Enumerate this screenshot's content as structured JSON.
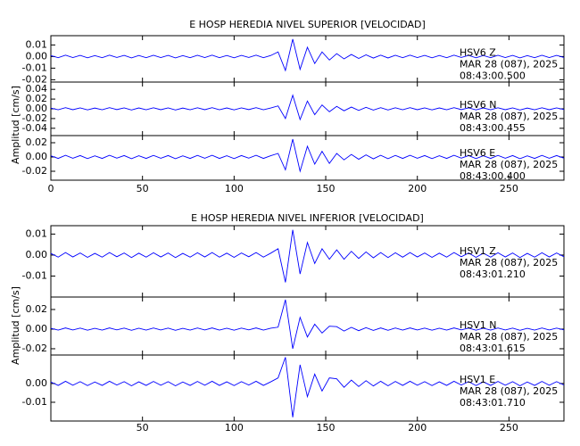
{
  "chart_data": [
    {
      "type": "line",
      "title": "E HOSP HEREDIA NIVEL SUPERIOR [VELOCIDAD]",
      "y_label": "Amplitud [cm/s]",
      "xlim": [
        0,
        280
      ],
      "xticks": [
        0,
        50,
        100,
        150,
        200,
        250
      ],
      "x": [
        0,
        4,
        8,
        12,
        16,
        20,
        24,
        28,
        32,
        36,
        40,
        44,
        48,
        52,
        56,
        60,
        64,
        68,
        72,
        76,
        80,
        84,
        88,
        92,
        96,
        100,
        104,
        108,
        112,
        116,
        120,
        124,
        128,
        132,
        136,
        140,
        144,
        148,
        152,
        156,
        160,
        164,
        168,
        172,
        176,
        180,
        184,
        188,
        192,
        196,
        200,
        204,
        208,
        212,
        216,
        220,
        224,
        228,
        232,
        236,
        240,
        244,
        248,
        252,
        256,
        260,
        264,
        268,
        272,
        276,
        280
      ],
      "panels": [
        {
          "name": "HSV6   Z",
          "date": "MAR 28 (087), 2025",
          "time": "08:43:00.500",
          "color": "#0000ff",
          "ylim": [
            -0.022,
            0.018
          ],
          "yticks": [
            0.01,
            {
              "value": 0,
              "label": "0.00"
            },
            -0.01,
            -0.02
          ],
          "values": [
            0.0008,
            -0.001,
            0.0012,
            -0.0009,
            0.001,
            -0.0011,
            0.0008,
            -0.001,
            0.0012,
            -0.0008,
            0.001,
            -0.0012,
            0.0009,
            -0.001,
            0.0011,
            -0.0009,
            0.001,
            -0.0012,
            0.0008,
            -0.001,
            0.0011,
            -0.0009,
            0.0012,
            -0.001,
            0.0009,
            -0.0011,
            0.001,
            -0.0008,
            0.0012,
            -0.001,
            0.0009,
            0.004,
            -0.012,
            0.015,
            -0.011,
            0.008,
            -0.006,
            0.004,
            -0.003,
            0.0025,
            -0.002,
            0.0018,
            -0.0016,
            0.0015,
            -0.0013,
            0.0012,
            -0.0012,
            0.0011,
            -0.001,
            0.0012,
            -0.0009,
            0.001,
            -0.0011,
            0.0009,
            -0.001,
            0.0012,
            -0.0008,
            0.001,
            -0.0011,
            0.0009,
            -0.001,
            0.0011,
            -0.0009,
            0.001,
            -0.0012,
            0.0008,
            -0.001,
            0.0011,
            -0.0009,
            0.001,
            -0.0008
          ]
        },
        {
          "name": "HSV6   N",
          "date": "MAR 28 (087), 2025",
          "time": "08:43:00.455",
          "color": "#0000ff",
          "ylim": [
            -0.055,
            0.055
          ],
          "yticks": [
            0.04,
            0.02,
            {
              "value": 0,
              "label": "0.00"
            },
            -0.02,
            -0.04
          ],
          "values": [
            0.0016,
            -0.002,
            0.0024,
            -0.0018,
            0.002,
            -0.0022,
            0.0016,
            -0.002,
            0.0024,
            -0.0016,
            0.002,
            -0.0024,
            0.0018,
            -0.002,
            0.0022,
            -0.0018,
            0.002,
            -0.0024,
            0.0016,
            -0.002,
            0.0022,
            -0.0018,
            0.0024,
            -0.002,
            0.0018,
            -0.0022,
            0.002,
            -0.0016,
            0.0024,
            -0.002,
            0.0018,
            0.006,
            -0.02,
            0.028,
            -0.022,
            0.016,
            -0.012,
            0.008,
            -0.006,
            0.005,
            -0.004,
            0.0036,
            -0.0032,
            0.003,
            -0.0026,
            0.0024,
            -0.0024,
            0.0022,
            -0.002,
            0.0024,
            -0.0018,
            0.002,
            -0.0022,
            0.0018,
            -0.002,
            0.0024,
            -0.0016,
            0.002,
            -0.0022,
            0.0018,
            -0.002,
            0.0022,
            -0.0018,
            0.002,
            -0.0024,
            0.0016,
            -0.002,
            0.0022,
            -0.0018,
            0.002,
            -0.0016
          ]
        },
        {
          "name": "HSV6   E",
          "date": "MAR 28 (087), 2025",
          "time": "08:43:00.400",
          "color": "#0000ff",
          "ylim": [
            -0.0325,
            0.03
          ],
          "yticks": [
            0.02,
            {
              "value": 0,
              "label": "0.00"
            },
            -0.02
          ],
          "values": [
            0.0016,
            -0.002,
            0.0024,
            -0.0018,
            0.002,
            -0.0022,
            0.0016,
            -0.002,
            0.0024,
            -0.0016,
            0.002,
            -0.0024,
            0.0018,
            -0.002,
            0.0022,
            -0.0018,
            0.002,
            -0.0024,
            0.0016,
            -0.002,
            0.0022,
            -0.0018,
            0.0024,
            -0.002,
            0.0018,
            -0.0022,
            0.002,
            -0.0016,
            0.0024,
            -0.002,
            0.0018,
            0.005,
            -0.018,
            0.025,
            -0.02,
            0.015,
            -0.01,
            0.008,
            -0.009,
            0.005,
            -0.004,
            0.0036,
            -0.0032,
            0.003,
            -0.0026,
            0.0024,
            -0.0024,
            0.0022,
            -0.002,
            0.0024,
            -0.0018,
            0.002,
            -0.0022,
            0.0018,
            -0.002,
            0.0024,
            -0.0016,
            0.002,
            -0.0022,
            0.0018,
            -0.002,
            0.0022,
            -0.0018,
            0.002,
            -0.0024,
            0.0016,
            -0.002,
            0.0022,
            -0.0018,
            0.002,
            -0.0016
          ]
        }
      ]
    },
    {
      "type": "line",
      "title": "E HOSP HEREDIA NIVEL INFERIOR [VELOCIDAD]",
      "y_label": "Amplitud [cm/s]",
      "xlim": [
        0,
        280
      ],
      "xticks": [
        50,
        100,
        150,
        200,
        250
      ],
      "x": [
        0,
        4,
        8,
        12,
        16,
        20,
        24,
        28,
        32,
        36,
        40,
        44,
        48,
        52,
        56,
        60,
        64,
        68,
        72,
        76,
        80,
        84,
        88,
        92,
        96,
        100,
        104,
        108,
        112,
        116,
        120,
        124,
        128,
        132,
        136,
        140,
        144,
        148,
        152,
        156,
        160,
        164,
        168,
        172,
        176,
        180,
        184,
        188,
        192,
        196,
        200,
        204,
        208,
        212,
        216,
        220,
        224,
        228,
        232,
        236,
        240,
        244,
        248,
        252,
        256,
        260,
        264,
        268,
        272,
        276,
        280
      ],
      "panels": [
        {
          "name": "HSV1   Z",
          "date": "MAR 28 (087), 2025",
          "time": "08:43:01.210",
          "color": "#0000ff",
          "ylim": [
            -0.02,
            0.014
          ],
          "yticks": [
            0.01,
            {
              "value": 0,
              "label": "0.00"
            },
            -0.01
          ],
          "values": [
            0.0008,
            -0.001,
            0.0012,
            -0.0009,
            0.001,
            -0.0011,
            0.0008,
            -0.001,
            0.0012,
            -0.0008,
            0.001,
            -0.0012,
            0.0009,
            -0.001,
            0.0011,
            -0.0009,
            0.001,
            -0.0012,
            0.0008,
            -0.001,
            0.0011,
            -0.0009,
            0.0012,
            -0.001,
            0.0009,
            -0.0011,
            0.001,
            -0.0008,
            0.0012,
            -0.001,
            0.0009,
            0.003,
            -0.013,
            0.012,
            -0.009,
            0.006,
            -0.004,
            0.003,
            -0.002,
            0.0025,
            -0.002,
            0.0018,
            -0.0016,
            0.0015,
            -0.0013,
            0.0012,
            -0.0012,
            0.0011,
            -0.001,
            0.0012,
            -0.0009,
            0.001,
            -0.0011,
            0.0009,
            -0.001,
            0.0012,
            -0.0008,
            0.001,
            -0.0011,
            0.0009,
            -0.001,
            0.0011,
            -0.0009,
            0.001,
            -0.0012,
            0.0008,
            -0.001,
            0.0011,
            -0.0009,
            0.001,
            -0.0008
          ]
        },
        {
          "name": "HSV1   N",
          "date": "MAR 28 (087), 2025",
          "time": "08:43:01.615",
          "color": "#0000ff",
          "ylim": [
            -0.0264,
            0.0327
          ],
          "yticks": [
            0.02,
            {
              "value": 0,
              "label": "0.00"
            },
            -0.02
          ],
          "values": [
            0.0008,
            -0.001,
            0.0012,
            -0.0009,
            0.001,
            -0.0011,
            0.0008,
            -0.001,
            0.0012,
            -0.0008,
            0.001,
            -0.0012,
            0.0009,
            -0.001,
            0.0011,
            -0.0009,
            0.001,
            -0.0012,
            0.0008,
            -0.001,
            0.0011,
            -0.0009,
            0.0012,
            -0.001,
            0.0009,
            -0.0011,
            0.001,
            -0.0008,
            0.0012,
            -0.001,
            0.0009,
            0.002,
            0.03,
            -0.02,
            0.012,
            -0.008,
            0.005,
            -0.004,
            0.003,
            0.0025,
            -0.002,
            0.0018,
            -0.0016,
            0.0015,
            -0.0013,
            0.0012,
            -0.0012,
            0.0011,
            -0.001,
            0.0012,
            -0.0009,
            0.001,
            -0.0011,
            0.0009,
            -0.001,
            0.0012,
            -0.0008,
            0.001,
            -0.0011,
            0.0009,
            -0.001,
            0.0011,
            -0.0009,
            0.001,
            -0.0012,
            0.0008,
            -0.001,
            0.0011,
            -0.0009,
            0.001,
            -0.0008
          ]
        },
        {
          "name": "HSV1   E",
          "date": "MAR 28 (087), 2025",
          "time": "08:43:01.710",
          "color": "#0000ff",
          "ylim": [
            -0.02,
            0.0152
          ],
          "yticks": [
            {
              "value": 0,
              "label": "0.00"
            },
            -0.01
          ],
          "values": [
            0.0008,
            -0.001,
            0.0012,
            -0.0009,
            0.001,
            -0.0011,
            0.0008,
            -0.001,
            0.0012,
            -0.0008,
            0.001,
            -0.0012,
            0.0009,
            -0.001,
            0.0011,
            -0.0009,
            0.001,
            -0.0012,
            0.0008,
            -0.001,
            0.0011,
            -0.0009,
            0.0012,
            -0.001,
            0.0009,
            -0.0011,
            0.001,
            -0.0008,
            0.0012,
            -0.001,
            0.0009,
            0.003,
            0.014,
            -0.018,
            0.01,
            -0.007,
            0.005,
            -0.004,
            0.003,
            0.0025,
            -0.002,
            0.0018,
            -0.0016,
            0.0015,
            -0.0013,
            0.0012,
            -0.0012,
            0.0011,
            -0.001,
            0.0012,
            -0.0009,
            0.001,
            -0.0011,
            0.0009,
            -0.001,
            0.0012,
            -0.0008,
            0.001,
            -0.0011,
            0.0009,
            -0.001,
            0.0011,
            -0.0009,
            0.001,
            -0.0012,
            0.0008,
            -0.001,
            0.0011,
            -0.0009,
            0.001,
            -0.0008
          ]
        }
      ]
    }
  ]
}
